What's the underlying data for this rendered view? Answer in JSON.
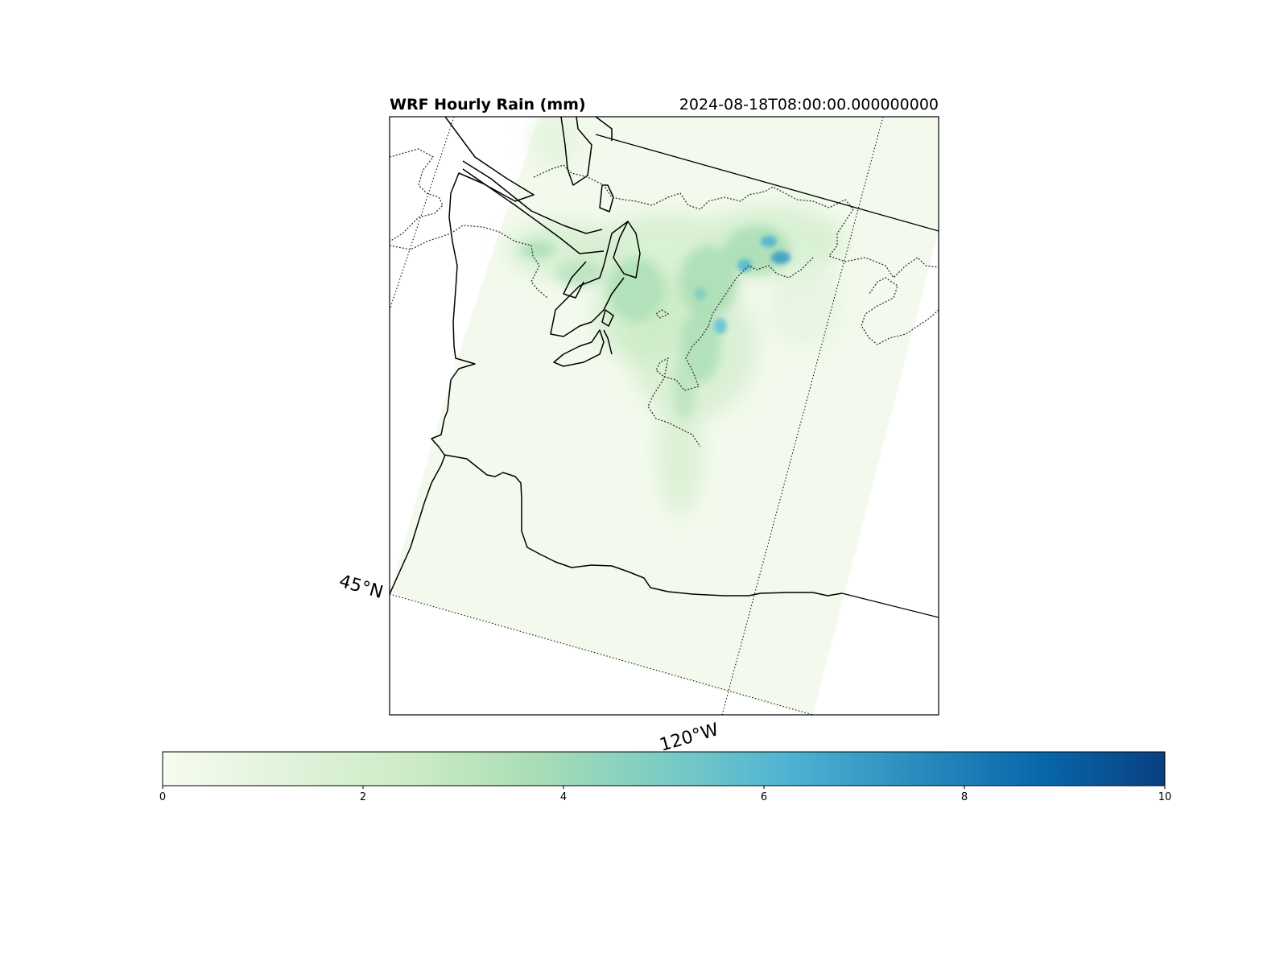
{
  "map": {
    "title": "WRF Hourly Rain (mm)",
    "timestamp": "2024-08-18T08:00:00.000000000",
    "lat_label": "45°N",
    "lon_label": "120°W",
    "region": "Washington State, USA",
    "colormap": "GnBu",
    "colors": {
      "background": "#ffffff",
      "land_base": "#f3faed",
      "light_rain": "#d4eecf",
      "moderate_rain": "#a8dcb5",
      "heavy_rain": "#4eb3d3",
      "very_heavy_rain": "#1d77b3",
      "coast": "#000000"
    }
  },
  "colorbar": {
    "min": 0,
    "max": 10,
    "ticks": [
      "0",
      "2",
      "4",
      "6",
      "8",
      "10"
    ],
    "stops": [
      "#f7fcf0",
      "#e0f3db",
      "#ccebc5",
      "#a8ddb5",
      "#7bccc4",
      "#4eb3d3",
      "#2b8cbe",
      "#0868ac",
      "#084081"
    ]
  }
}
